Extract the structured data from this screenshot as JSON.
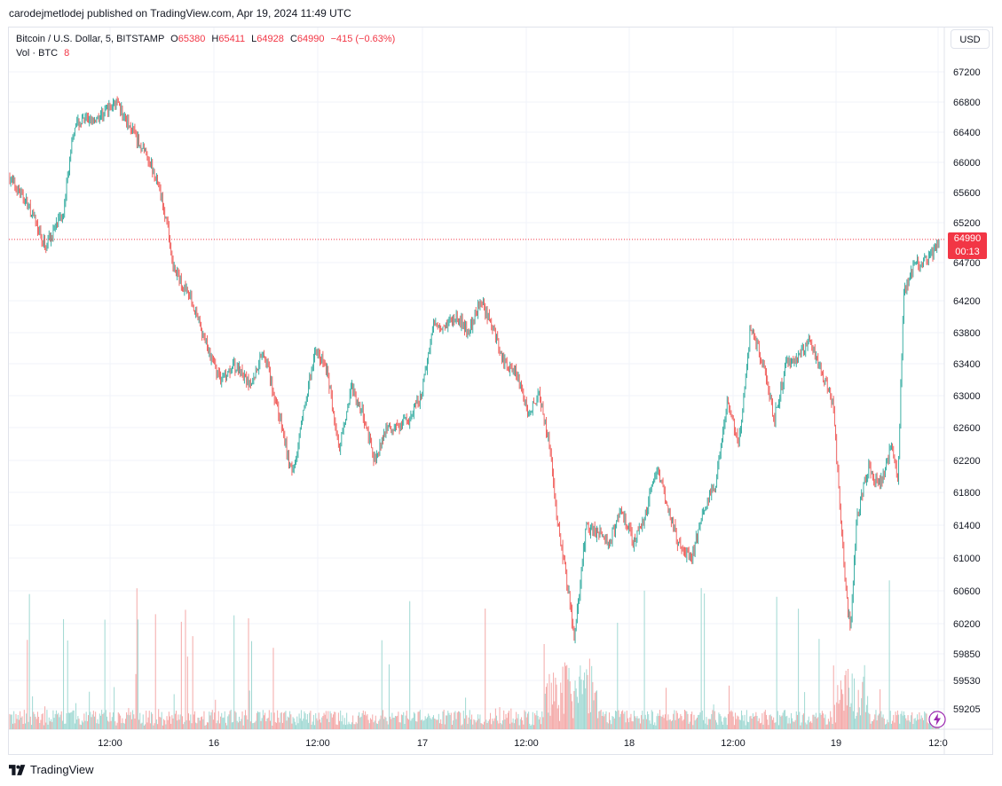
{
  "header": {
    "published": "carodejmetlodej published on TradingView.com, Apr 19, 2024 11:49 UTC"
  },
  "legend": {
    "symbol": "Bitcoin / U.S. Dollar, 5, BITSTAMP",
    "o_label": "O",
    "o_value": "65380",
    "h_label": "H",
    "h_value": "65411",
    "l_label": "L",
    "l_value": "64928",
    "c_label": "C",
    "c_value": "64990",
    "change": "−415 (−0.63%)",
    "vol_label": "Vol · BTC",
    "vol_value": "8"
  },
  "currency_button": "USD",
  "price_tag": {
    "price": "64990",
    "countdown": "00:13"
  },
  "footer": {
    "brand": "TradingView"
  },
  "colors": {
    "up": "#26a69a",
    "down": "#ef5350",
    "vol_up": "#9fd8d2",
    "vol_down": "#f4a8a7",
    "last_price_line": "#f23645"
  },
  "chart_data": {
    "type": "candlestick",
    "title": "Bitcoin / U.S. Dollar, 5, BITSTAMP",
    "y_ticks": [
      67200,
      66800,
      66400,
      66000,
      65600,
      65200,
      64700,
      64200,
      63800,
      63400,
      63000,
      62600,
      62200,
      61800,
      61400,
      61000,
      60600,
      60200,
      59850,
      59530,
      59205
    ],
    "y_tick_labels": [
      "67200",
      "66800",
      "66400",
      "66000",
      "65600",
      "65200",
      "64700",
      "64200",
      "63800",
      "63400",
      "63000",
      "62600",
      "62200",
      "61800",
      "61400",
      "61000",
      "60600",
      "60200",
      "59850",
      "59530",
      "59205"
    ],
    "x_tick_labels": [
      "12:00",
      "16",
      "12:00",
      "17",
      "12:00",
      "18",
      "12:00",
      "19",
      "12:0"
    ],
    "last_price": 64990,
    "close_path": [
      [
        0,
        65800
      ],
      [
        3,
        65450
      ],
      [
        6,
        64900
      ],
      [
        9,
        65300
      ],
      [
        11,
        66500
      ],
      [
        15,
        66600
      ],
      [
        18,
        66800
      ],
      [
        21,
        66400
      ],
      [
        24,
        66000
      ],
      [
        26,
        65500
      ],
      [
        28,
        64600
      ],
      [
        31,
        64200
      ],
      [
        34,
        63500
      ],
      [
        36,
        63200
      ],
      [
        38,
        63400
      ],
      [
        41,
        63100
      ],
      [
        43,
        63600
      ],
      [
        46,
        62700
      ],
      [
        48,
        62000
      ],
      [
        50,
        62800
      ],
      [
        52,
        63600
      ],
      [
        54,
        63300
      ],
      [
        56,
        62300
      ],
      [
        58,
        63100
      ],
      [
        60,
        62800
      ],
      [
        62,
        62200
      ],
      [
        64,
        62600
      ],
      [
        66,
        62600
      ],
      [
        68,
        62700
      ],
      [
        70,
        63000
      ],
      [
        72,
        63900
      ],
      [
        74,
        63900
      ],
      [
        76,
        64000
      ],
      [
        78,
        63800
      ],
      [
        80,
        64200
      ],
      [
        82,
        63900
      ],
      [
        84,
        63400
      ],
      [
        86,
        63300
      ],
      [
        88,
        62800
      ],
      [
        90,
        63000
      ],
      [
        92,
        62300
      ],
      [
        93,
        61500
      ],
      [
        95,
        60600
      ],
      [
        96,
        60000
      ],
      [
        98,
        61400
      ],
      [
        100,
        61300
      ],
      [
        102,
        61200
      ],
      [
        104,
        61600
      ],
      [
        106,
        61200
      ],
      [
        108,
        61500
      ],
      [
        110,
        62100
      ],
      [
        112,
        61600
      ],
      [
        114,
        61100
      ],
      [
        116,
        61000
      ],
      [
        118,
        61600
      ],
      [
        120,
        61900
      ],
      [
        122,
        62900
      ],
      [
        124,
        62400
      ],
      [
        126,
        63900
      ],
      [
        128,
        63400
      ],
      [
        130,
        62700
      ],
      [
        132,
        63400
      ],
      [
        134,
        63500
      ],
      [
        136,
        63700
      ],
      [
        138,
        63300
      ],
      [
        140,
        62900
      ],
      [
        141,
        61800
      ],
      [
        142,
        60700
      ],
      [
        143,
        60100
      ],
      [
        144,
        61500
      ],
      [
        146,
        62100
      ],
      [
        148,
        61900
      ],
      [
        150,
        62400
      ],
      [
        151,
        61900
      ],
      [
        152,
        64300
      ],
      [
        154,
        64700
      ],
      [
        156,
        64700
      ],
      [
        158,
        64990
      ]
    ],
    "n_candles": 900
  }
}
